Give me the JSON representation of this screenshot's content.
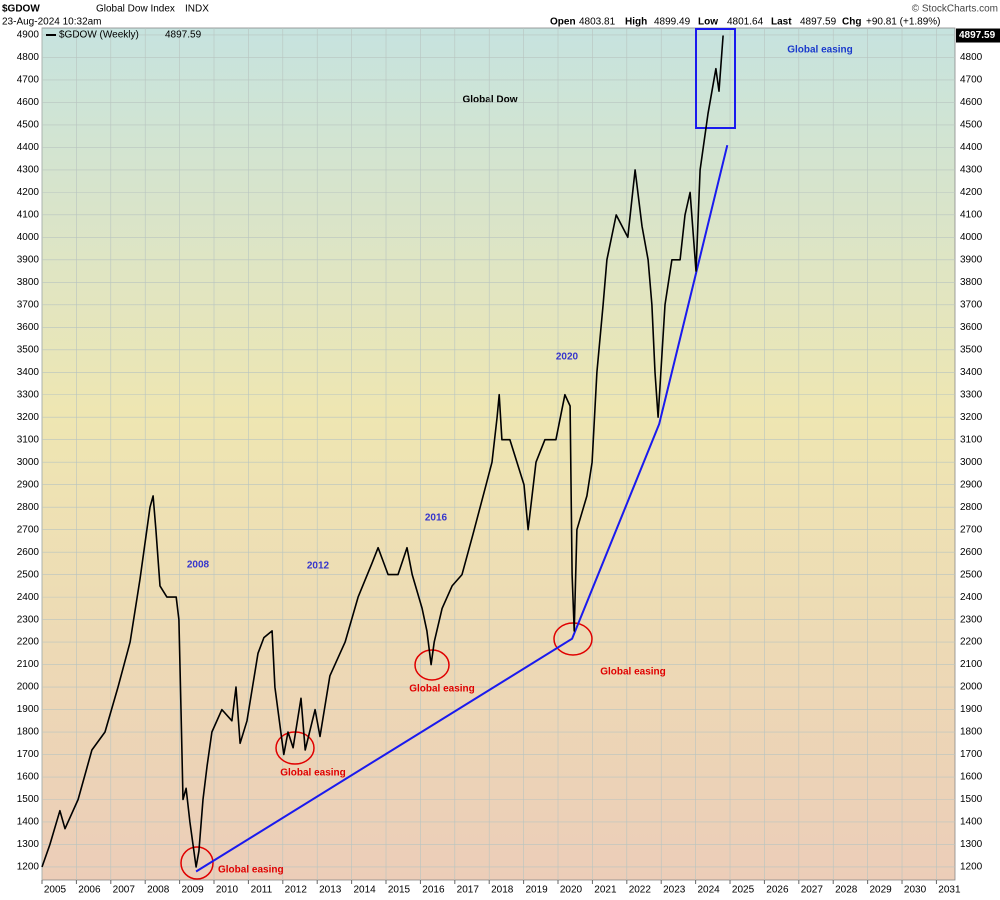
{
  "chart_data": {
    "type": "line",
    "title": "Global Dow",
    "header": {
      "symbol": "$GDOW",
      "name": "Global Dow Index",
      "exchange": "INDX",
      "timestamp": "23-Aug-2024 10:32am",
      "quote": [
        {
          "label": "Open",
          "value": 4803.81
        },
        {
          "label": "High",
          "value": 4899.49
        },
        {
          "label": "Low",
          "value": 4801.64
        },
        {
          "label": "Last",
          "value": 4897.59
        }
      ],
      "change_label": "Chg",
      "change": "+90.81 (+1.89%)",
      "credit": "© StockCharts.com"
    },
    "series": [
      {
        "name": "$GDOW (Weekly)",
        "color": "#000000",
        "x": [
          2005.0,
          2005.23,
          2005.52,
          2005.67,
          2006.05,
          2006.45,
          2006.83,
          2007.21,
          2007.56,
          2007.85,
          2008.14,
          2008.23,
          2008.31,
          2008.43,
          2008.63,
          2008.9,
          2008.98,
          2009.04,
          2009.1,
          2009.19,
          2009.3,
          2009.39,
          2009.48,
          2009.56,
          2009.68,
          2009.8,
          2009.94,
          2010.23,
          2010.52,
          2010.64,
          2010.76,
          2010.96,
          2011.28,
          2011.45,
          2011.69,
          2011.77,
          2012.03,
          2012.15,
          2012.3,
          2012.53,
          2012.65,
          2012.94,
          2013.08,
          2013.37,
          2013.81,
          2014.19,
          2014.59,
          2014.77,
          2015.06,
          2015.35,
          2015.61,
          2015.76,
          2016.05,
          2016.19,
          2016.31,
          2016.4,
          2016.63,
          2016.92,
          2017.21,
          2017.53,
          2017.91,
          2018.08,
          2018.23,
          2018.29,
          2018.37,
          2018.6,
          2019.01,
          2019.13,
          2019.36,
          2019.62,
          2019.94,
          2020.2,
          2020.35,
          2020.41,
          2020.47,
          2020.55,
          2020.84,
          2020.99,
          2021.13,
          2021.31,
          2021.42,
          2021.69,
          2022.03,
          2022.24,
          2022.44,
          2022.62,
          2022.73,
          2022.82,
          2022.91,
          2023.11,
          2023.31,
          2023.55,
          2023.69,
          2023.84,
          2024.01,
          2024.13,
          2024.36,
          2024.59,
          2024.68,
          2024.8
        ],
        "values": [
          1200,
          1300,
          1450,
          1370,
          1500,
          1720,
          1800,
          2000,
          2200,
          2480,
          2800,
          2850,
          2700,
          2450,
          2400,
          2400,
          2300,
          1900,
          1500,
          1550,
          1400,
          1300,
          1200,
          1270,
          1500,
          1650,
          1800,
          1900,
          1850,
          2000,
          1750,
          1850,
          2150,
          2220,
          2250,
          2000,
          1700,
          1800,
          1730,
          1950,
          1720,
          1900,
          1780,
          2050,
          2200,
          2400,
          2550,
          2620,
          2500,
          2500,
          2620,
          2500,
          2350,
          2250,
          2100,
          2200,
          2350,
          2450,
          2500,
          2680,
          2900,
          3000,
          3200,
          3300,
          3100,
          3100,
          2900,
          2700,
          3000,
          3100,
          3100,
          3300,
          3250,
          2500,
          2250,
          2700,
          2850,
          3000,
          3400,
          3700,
          3900,
          4100,
          4000,
          4300,
          4050,
          3900,
          3700,
          3400,
          3200,
          3700,
          3900,
          3900,
          4100,
          4200,
          3850,
          4300,
          4550,
          4750,
          4650,
          4897.59
        ]
      }
    ],
    "trendline": {
      "color": "#1a1aee",
      "x": [
        2009.48,
        2020.41,
        2022.94,
        2024.92
      ],
      "values": [
        1180,
        2215,
        3170,
        4410
      ]
    },
    "annotations": [
      {
        "text": "2008",
        "color": "#3535cc"
      },
      {
        "text": "2012",
        "color": "#3535cc"
      },
      {
        "text": "2016",
        "color": "#3535cc"
      },
      {
        "text": "2020",
        "color": "#3535cc"
      },
      {
        "text": "Global easing",
        "color": "#e00000"
      },
      {
        "text": "Global easing",
        "color": "#e00000"
      },
      {
        "text": "Global easing",
        "color": "#e00000"
      },
      {
        "text": "Global easing",
        "color": "#e00000"
      },
      {
        "text": "Global easing",
        "color": "#1a3acc"
      }
    ],
    "grid": true,
    "xlim": [
      2005,
      2031.54
    ],
    "ylim": [
      1142,
      4931
    ],
    "xticks": [
      2005,
      2006,
      2007,
      2008,
      2009,
      2010,
      2011,
      2012,
      2013,
      2014,
      2015,
      2016,
      2017,
      2018,
      2019,
      2020,
      2021,
      2022,
      2023,
      2024,
      2025,
      2026,
      2027,
      2028,
      2029,
      2030,
      2031
    ],
    "yticks": [
      1200,
      1300,
      1400,
      1500,
      1600,
      1700,
      1800,
      1900,
      2000,
      2100,
      2200,
      2300,
      2400,
      2500,
      2600,
      2700,
      2800,
      2900,
      3000,
      3100,
      3200,
      3300,
      3400,
      3500,
      3600,
      3700,
      3800,
      3900,
      4000,
      4100,
      4200,
      4300,
      4400,
      4500,
      4600,
      4700,
      4800,
      4900
    ]
  }
}
